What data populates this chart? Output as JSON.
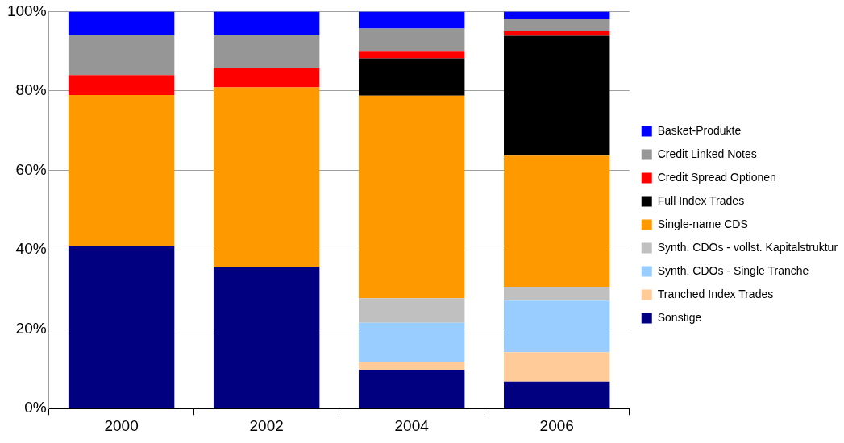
{
  "chart_data": {
    "type": "bar",
    "stacked": true,
    "categories": [
      "2000",
      "2002",
      "2004",
      "2006"
    ],
    "ylim": [
      0,
      100
    ],
    "yticks": [
      {
        "value": 0,
        "label": "0%"
      },
      {
        "value": 20,
        "label": "20%"
      },
      {
        "value": 40,
        "label": "40%"
      },
      {
        "value": 60,
        "label": "60%"
      },
      {
        "value": 80,
        "label": "80%"
      },
      {
        "value": 100,
        "label": "100%"
      }
    ],
    "grid": "y",
    "legend": "right",
    "series": [
      {
        "name": "Sonstige",
        "color": "#000080",
        "values": [
          41,
          35.7,
          9.8,
          6.8
        ]
      },
      {
        "name": "Tranched Index Trades",
        "color": "#ffcc99",
        "values": [
          0,
          0,
          1.9,
          7.4
        ]
      },
      {
        "name": "Synth. CDOs - Single Tranche",
        "color": "#99ccff",
        "values": [
          0,
          0,
          9.9,
          13
        ]
      },
      {
        "name": "Synth. CDOs - vollst. Kapitalstruktur",
        "color": "#c0c0c0",
        "values": [
          0,
          0,
          6.2,
          3.5
        ]
      },
      {
        "name": "Single-name CDS",
        "color": "#ff9900",
        "values": [
          38,
          45.2,
          51,
          33
        ]
      },
      {
        "name": "Full Index Trades",
        "color": "#000000",
        "values": [
          0,
          0,
          9.4,
          30.2
        ]
      },
      {
        "name": "Credit Spread Optionen",
        "color": "#ff0000",
        "values": [
          5,
          5,
          1.9,
          1.1
        ]
      },
      {
        "name": "Credit Linked Notes",
        "color": "#969696",
        "values": [
          10,
          8.1,
          5.6,
          3.2
        ]
      },
      {
        "name": "Basket-Produkte",
        "color": "#0000ff",
        "values": [
          6,
          6,
          4.3,
          1.8
        ]
      }
    ]
  }
}
